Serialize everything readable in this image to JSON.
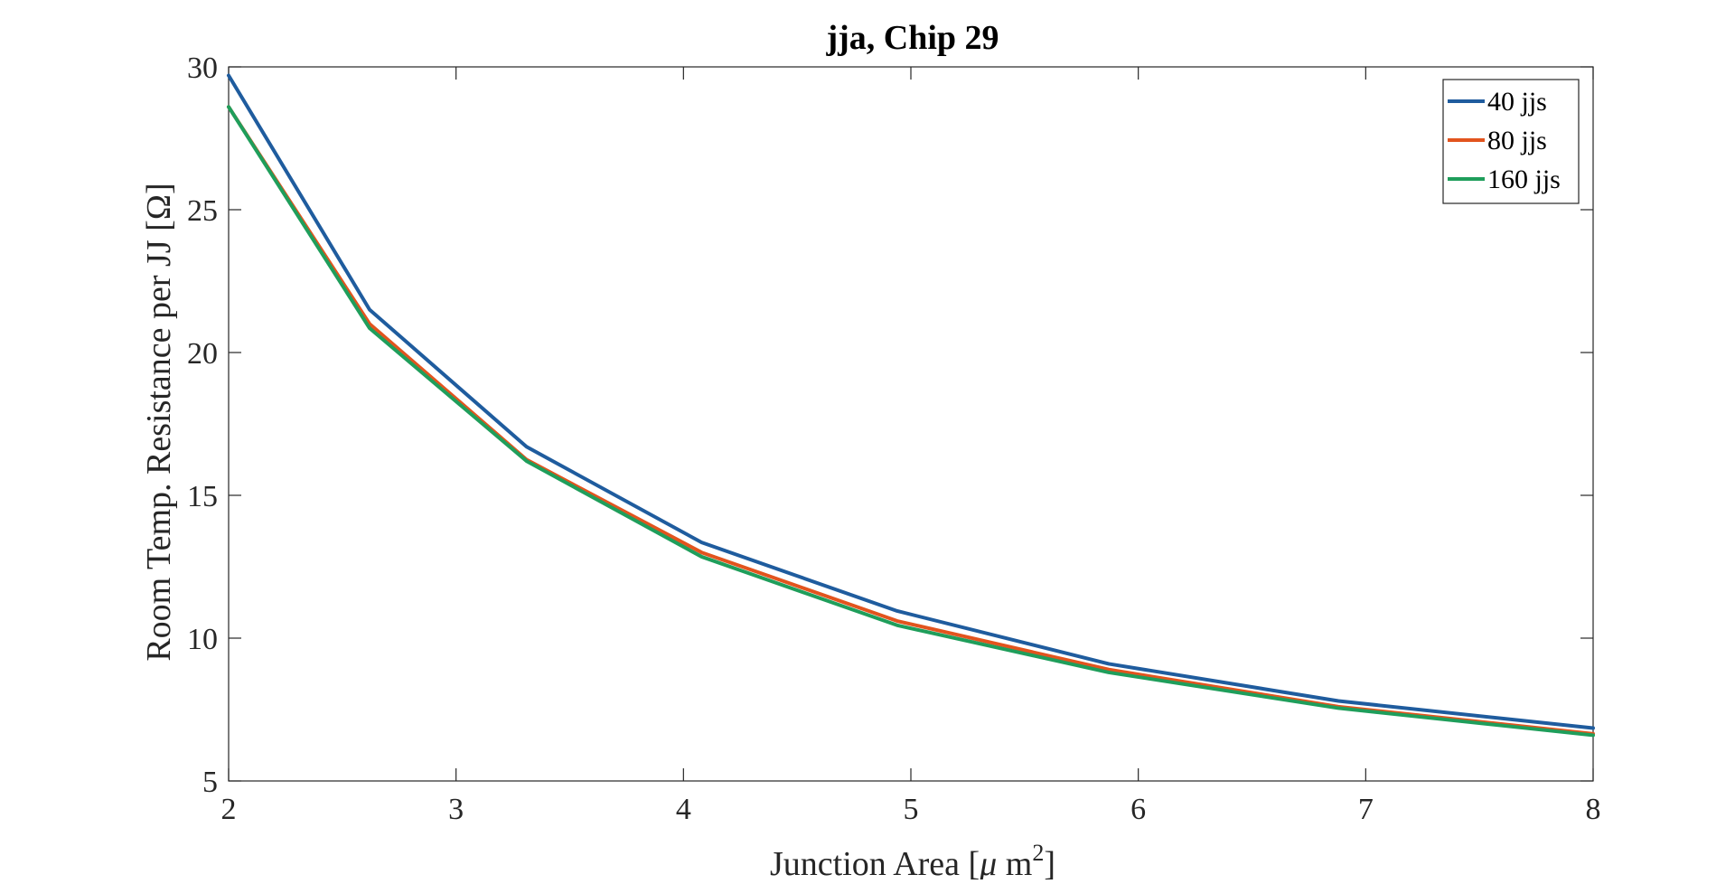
{
  "chart_data": {
    "type": "line",
    "title": "jja, Chip 29",
    "xlabel": "Junction Area [μ m²]",
    "xlabel_parts": {
      "before": "Junction Area [",
      "mu": "μ",
      "unit": " m",
      "sup": "2",
      "after": "]"
    },
    "ylabel": "Room Temp. Resistance per JJ [Ω]",
    "xlim": [
      2,
      8
    ],
    "ylim": [
      5,
      30
    ],
    "xticks": [
      "2",
      "3",
      "4",
      "5",
      "6",
      "7",
      "8"
    ],
    "yticks": [
      "5",
      "10",
      "15",
      "20",
      "25",
      "30"
    ],
    "grid": false,
    "legend_position": "top-right",
    "x": [
      2.0,
      2.62,
      3.31,
      4.08,
      4.94,
      5.87,
      6.88,
      8.0
    ],
    "series": [
      {
        "name": "40 jjs",
        "color": "#1f5c9e",
        "values": [
          29.7,
          21.5,
          16.7,
          13.35,
          10.95,
          9.1,
          7.8,
          6.85
        ]
      },
      {
        "name": "80 jjs",
        "color": "#e2541e",
        "values": [
          28.6,
          21.0,
          16.25,
          13.0,
          10.6,
          8.9,
          7.6,
          6.65
        ]
      },
      {
        "name": "160 jjs",
        "color": "#1f9e5b",
        "values": [
          28.6,
          20.85,
          16.2,
          12.85,
          10.45,
          8.8,
          7.55,
          6.6
        ]
      }
    ]
  }
}
